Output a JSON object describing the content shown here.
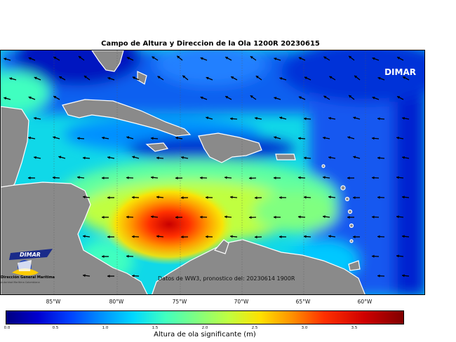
{
  "title": "Campo de Altura y Direccion de la Ola 1200R 20230615",
  "watermark": "DIMAR",
  "source_note": "Datos de WW3, pronostico del: 20230614 1900R",
  "logo": {
    "name": "DIMAR",
    "org": "Dirección General Marítima",
    "sub": "Autoridad Marítima Colombiana"
  },
  "longitude_labels": [
    "85°W",
    "80°W",
    "75°W",
    "70°W",
    "65°W",
    "60°W"
  ],
  "colorbar": {
    "label": "Altura de ola significante (m)",
    "ticks": [
      "0.0",
      "0.5",
      "1.0",
      "1.5",
      "2.0",
      "2.5",
      "3.0",
      "3.5"
    ],
    "range": [
      0.0,
      4.0
    ],
    "colors": [
      "#000080",
      "#0040ff",
      "#00d8ff",
      "#80ff80",
      "#ffe000",
      "#ff3000",
      "#800000"
    ]
  },
  "colors": {
    "land": "#8a8a8a",
    "coast": "#ffffff",
    "arrow": "#000000"
  }
}
